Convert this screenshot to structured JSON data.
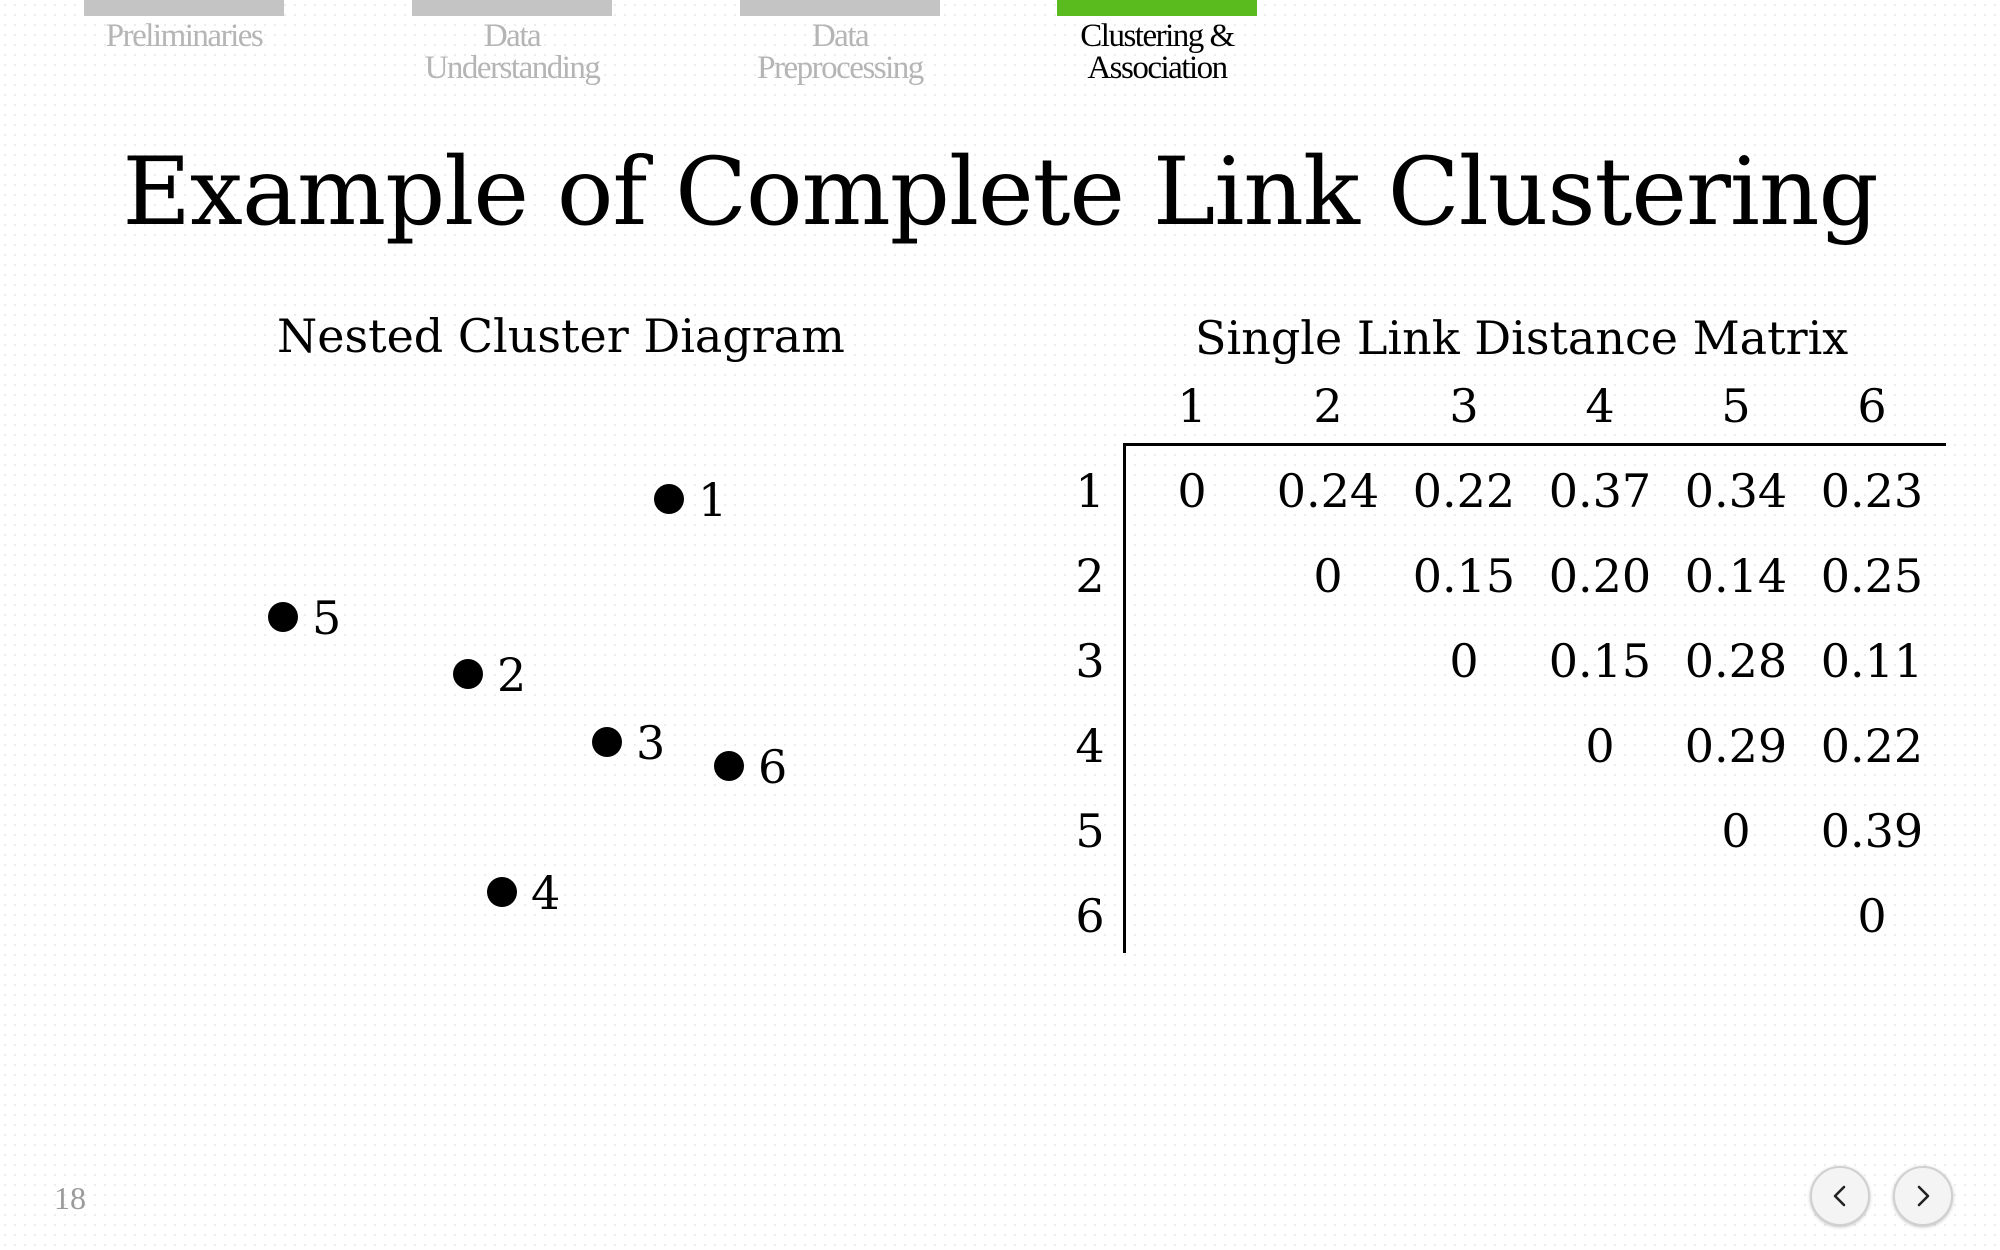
{
  "nav": {
    "tabs": [
      {
        "label": "Preliminaries",
        "active": false
      },
      {
        "label": "Data\nUnderstanding",
        "active": false
      },
      {
        "label": "Data\nPreprocessing",
        "active": false
      },
      {
        "label": "Clustering &\nAssociation",
        "active": true
      }
    ],
    "active_color": "#5abb1f",
    "inactive_color": "#c4c4c4"
  },
  "slide": {
    "title": "Example of Complete Link Clustering",
    "diagram_title": "Nested Cluster Diagram",
    "matrix_title": "Single Link Distance Matrix",
    "number": "18"
  },
  "diagram": {
    "points": [
      {
        "label": "1"
      },
      {
        "label": "5"
      },
      {
        "label": "2"
      },
      {
        "label": "3"
      },
      {
        "label": "6"
      },
      {
        "label": "4"
      }
    ]
  },
  "matrix": {
    "col_headers": [
      "1",
      "2",
      "3",
      "4",
      "5",
      "6"
    ],
    "row_headers": [
      "1",
      "2",
      "3",
      "4",
      "5",
      "6"
    ],
    "rows": [
      [
        "0",
        "0.24",
        "0.22",
        "0.37",
        "0.34",
        "0.23"
      ],
      [
        "",
        "0",
        "0.15",
        "0.20",
        "0.14",
        "0.25"
      ],
      [
        "",
        "",
        "0",
        "0.15",
        "0.28",
        "0.11"
      ],
      [
        "",
        "",
        "",
        "0",
        "0.29",
        "0.22"
      ],
      [
        "",
        "",
        "",
        "",
        "0",
        "0.39"
      ],
      [
        "",
        "",
        "",
        "",
        "",
        "0"
      ]
    ]
  },
  "controls": {
    "prev_icon": "chevron-left-icon",
    "next_icon": "chevron-right-icon"
  }
}
